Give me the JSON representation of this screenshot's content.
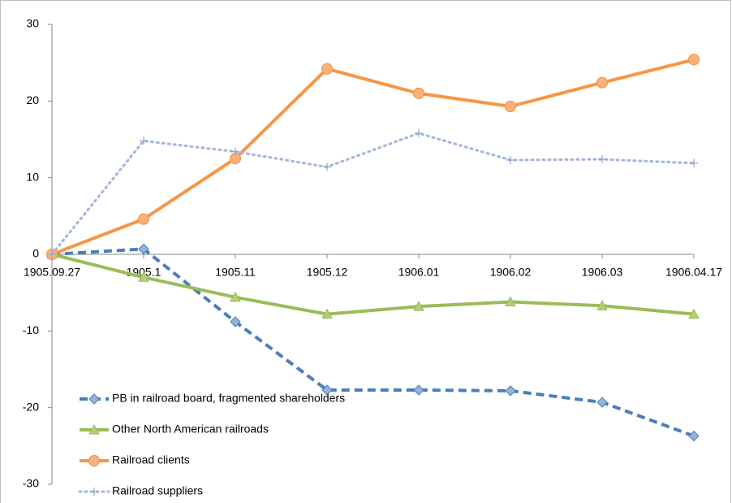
{
  "chart_data": {
    "type": "line",
    "categories": [
      "1905.09.27",
      "1905.1",
      "1905.11",
      "1905.12",
      "1906.01",
      "1906.02",
      "1906.03",
      "1906.04.17"
    ],
    "series": [
      {
        "name": "PB in railroad board, fragmented shareholders",
        "color": "#4a7ebb",
        "marker": "diamond",
        "dash": "dashed",
        "values": [
          0,
          0.7,
          -8.8,
          -17.7,
          -17.7,
          -17.8,
          -19.3,
          -23.7
        ]
      },
      {
        "name": "Other North American railroads",
        "color": "#9bbb59",
        "marker": "triangle",
        "dash": "solid",
        "values": [
          0,
          -3,
          -5.6,
          -7.8,
          -6.8,
          -6.2,
          -6.7,
          -7.8
        ]
      },
      {
        "name": "Railroad clients",
        "color": "#f79646",
        "marker": "circle",
        "dash": "solid",
        "values": [
          0,
          4.6,
          12.5,
          24.2,
          21,
          19.3,
          22.4,
          25.4
        ]
      },
      {
        "name": "Railroad suppliers",
        "color": "#a3b5dc",
        "marker": "plus",
        "dash": "dotted",
        "values": [
          0,
          14.8,
          13.4,
          11.4,
          15.8,
          12.3,
          12.4,
          11.9
        ]
      }
    ],
    "ylim": [
      -30,
      30
    ],
    "yticks": [
      -30,
      -20,
      -10,
      0,
      10,
      20,
      30
    ],
    "grid": false,
    "legend": "lower-left"
  }
}
